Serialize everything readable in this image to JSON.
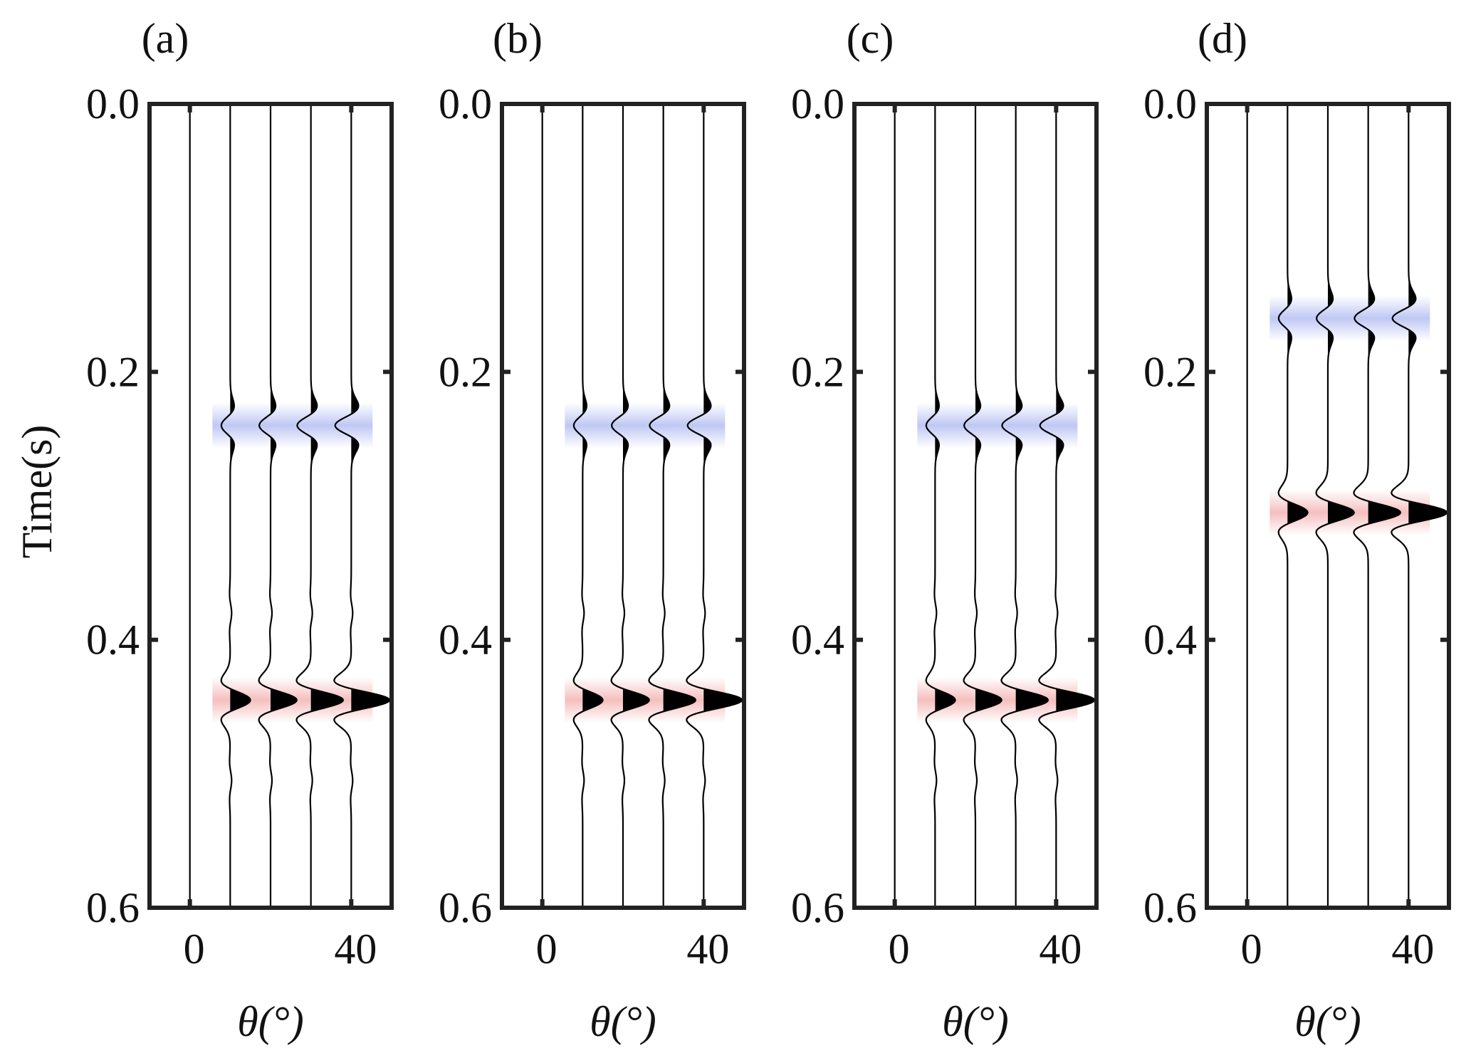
{
  "chart_data": [
    {
      "type": "wiggle",
      "panel_label": "(a)",
      "ylabel": "Time(s)",
      "xlabel": "θ(°)",
      "ylim": [
        0.0,
        0.6
      ],
      "y_ticks": [
        "0.0",
        "0.2",
        "0.4",
        "0.6"
      ],
      "x_ticks": [
        "0",
        "40"
      ],
      "x_tick_values": [
        0,
        40
      ],
      "traces_x": [
        0,
        10,
        20,
        30,
        40
      ],
      "xlim": [
        -10,
        50
      ],
      "events": [
        {
          "time": 0.24,
          "amplitude": [
            0,
            -2.2,
            -2.8,
            -3.4,
            -4.0
          ],
          "color": "#aab6f0"
        },
        {
          "time": 0.445,
          "amplitude": [
            0,
            5.0,
            6.5,
            8.0,
            9.5
          ],
          "color": "#f2a9a9"
        }
      ],
      "weak_events": [
        0.38,
        0.505
      ]
    },
    {
      "type": "wiggle",
      "panel_label": "(b)",
      "ylabel": "",
      "xlabel": "θ(°)",
      "ylim": [
        0.0,
        0.6
      ],
      "y_ticks": [
        "0.0",
        "0.2",
        "0.4",
        "0.6"
      ],
      "x_ticks": [
        "0",
        "40"
      ],
      "x_tick_values": [
        0,
        40
      ],
      "traces_x": [
        0,
        10,
        20,
        30,
        40
      ],
      "xlim": [
        -10,
        50
      ],
      "events": [
        {
          "time": 0.24,
          "amplitude": [
            0,
            -2.2,
            -2.8,
            -3.4,
            -4.0
          ],
          "color": "#aab6f0"
        },
        {
          "time": 0.445,
          "amplitude": [
            0,
            5.0,
            6.5,
            8.0,
            9.5
          ],
          "color": "#f2a9a9"
        }
      ],
      "weak_events": [
        0.38,
        0.505
      ]
    },
    {
      "type": "wiggle",
      "panel_label": "(c)",
      "ylabel": "",
      "xlabel": "θ(°)",
      "ylim": [
        0.0,
        0.6
      ],
      "y_ticks": [
        "0.0",
        "0.2",
        "0.4",
        "0.6"
      ],
      "x_ticks": [
        "0",
        "40"
      ],
      "x_tick_values": [
        0,
        40
      ],
      "traces_x": [
        0,
        10,
        20,
        30,
        40
      ],
      "xlim": [
        -10,
        50
      ],
      "events": [
        {
          "time": 0.24,
          "amplitude": [
            0,
            -2.2,
            -2.8,
            -3.4,
            -4.0
          ],
          "color": "#aab6f0"
        },
        {
          "time": 0.445,
          "amplitude": [
            0,
            5.0,
            6.5,
            8.0,
            9.5
          ],
          "color": "#f2a9a9"
        }
      ],
      "weak_events": [
        0.38,
        0.505
      ]
    },
    {
      "type": "wiggle",
      "panel_label": "(d)",
      "ylabel": "",
      "xlabel": "θ(°)",
      "ylim": [
        0.0,
        0.6
      ],
      "y_ticks": [
        "0.0",
        "0.2",
        "0.4",
        "0.6"
      ],
      "x_ticks": [
        "0",
        "40"
      ],
      "x_tick_values": [
        0,
        40
      ],
      "traces_x": [
        0,
        10,
        20,
        30,
        40
      ],
      "xlim": [
        -10,
        50
      ],
      "events": [
        {
          "time": 0.16,
          "amplitude": [
            0,
            -2.2,
            -2.8,
            -3.4,
            -4.0
          ],
          "color": "#aab6f0"
        },
        {
          "time": 0.305,
          "amplitude": [
            0,
            5.0,
            6.5,
            8.0,
            9.5
          ],
          "color": "#f2a9a9"
        }
      ],
      "weak_events": []
    }
  ]
}
